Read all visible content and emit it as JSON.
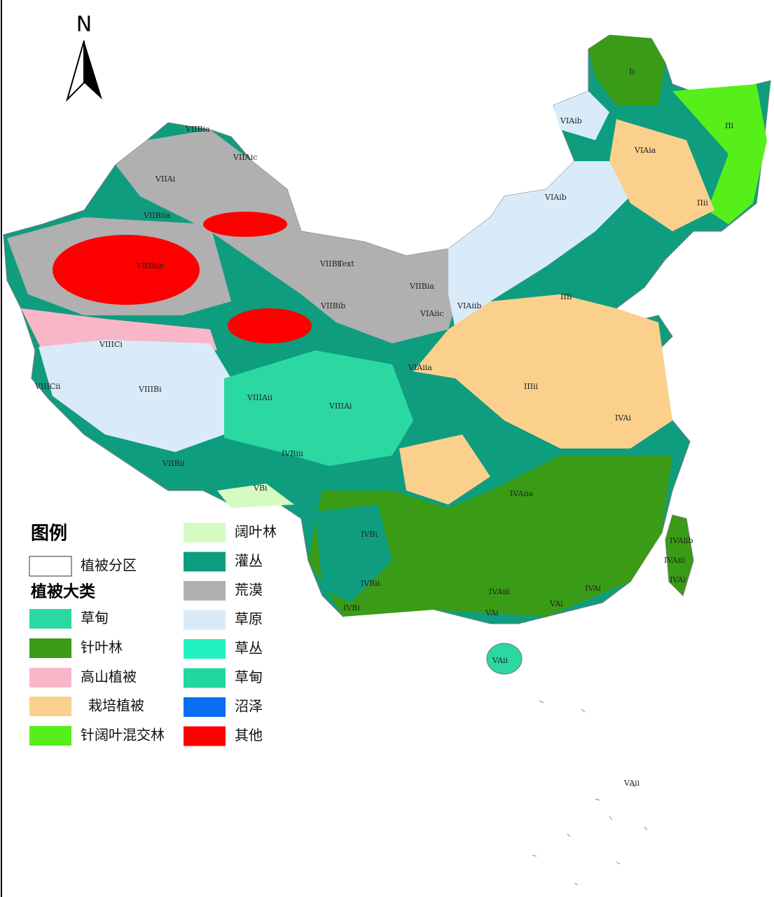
{
  "north_arrow": "N",
  "legend": {
    "title": "图例",
    "boundary": "植被分区",
    "group_title": "植被大类",
    "left_items": [
      {
        "label": "草甸",
        "color": "#2bd8a2"
      },
      {
        "label": "针叶林",
        "color": "#3a9c16"
      },
      {
        "label": "高山植被",
        "color": "#f9b6c9"
      },
      {
        "label": "栽培植被",
        "color": "#fad08c"
      },
      {
        "label": "针阔叶混交林",
        "color": "#56ef1a"
      }
    ],
    "right_items": [
      {
        "label": "阔叶林",
        "color": "#d5fbc2"
      },
      {
        "label": "灌丛",
        "color": "#0f9d7f"
      },
      {
        "label": "荒漠",
        "color": "#b0b0b0"
      },
      {
        "label": "草原",
        "color": "#d9ebf8"
      },
      {
        "label": "草丛",
        "color": "#22f2c0"
      },
      {
        "label": "草甸",
        "color": "#1fd79f"
      },
      {
        "label": "沼泽",
        "color": "#0a6ef2"
      },
      {
        "label": "其他",
        "color": "#ff0000"
      }
    ]
  },
  "region_labels": [
    "VIIBia",
    "VIIAic",
    "VIIAi",
    "VIIBiia",
    "VIIBiib",
    "VIIBi",
    "Text",
    "VIIBia",
    "VIAiic",
    "VIAiib",
    "VIIBib",
    "VIIICi",
    "VIIICii",
    "VIIIBi",
    "VIIIAii",
    "VIIIAi",
    "VIAiia",
    "IIIii",
    "IVAi",
    "IIIi",
    "Ii",
    "IIi",
    "VIAia",
    "VIAib",
    "VIAib",
    "IIii",
    "VIIBii",
    "IVBiii",
    "VBi",
    "IVAiia",
    "IVBi",
    "IVBii",
    "IVBi",
    "IVAiii",
    "VAi",
    "VAi",
    "IVAi",
    "VAii",
    "IVAiib",
    "IVAiii",
    "IVAi",
    "VAii"
  ]
}
